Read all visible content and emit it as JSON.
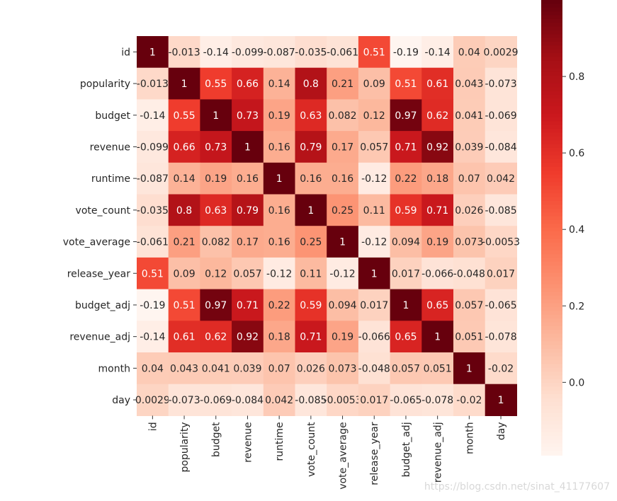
{
  "chart_data": {
    "type": "heatmap",
    "title": "",
    "xlabel": "",
    "ylabel": "",
    "colormap": "Reds",
    "labels": [
      "id",
      "popularity",
      "budget",
      "revenue",
      "runtime",
      "vote_count",
      "vote_average",
      "release_year",
      "budget_adj",
      "revenue_adj",
      "month",
      "day"
    ],
    "matrix": [
      [
        1,
        -0.013,
        -0.14,
        -0.099,
        -0.087,
        -0.035,
        -0.061,
        0.51,
        -0.19,
        -0.14,
        0.04,
        0.0029
      ],
      [
        -0.013,
        1,
        0.55,
        0.66,
        0.14,
        0.8,
        0.21,
        0.09,
        0.51,
        0.61,
        0.043,
        -0.073
      ],
      [
        -0.14,
        0.55,
        1,
        0.73,
        0.19,
        0.63,
        0.082,
        0.12,
        0.97,
        0.62,
        0.041,
        -0.069
      ],
      [
        -0.099,
        0.66,
        0.73,
        1,
        0.16,
        0.79,
        0.17,
        0.057,
        0.71,
        0.92,
        0.039,
        -0.084
      ],
      [
        -0.087,
        0.14,
        0.19,
        0.16,
        1,
        0.16,
        0.16,
        -0.12,
        0.22,
        0.18,
        0.07,
        0.042
      ],
      [
        -0.035,
        0.8,
        0.63,
        0.79,
        0.16,
        1,
        0.25,
        0.11,
        0.59,
        0.71,
        0.026,
        -0.085
      ],
      [
        -0.061,
        0.21,
        0.082,
        0.17,
        0.16,
        0.25,
        1,
        -0.12,
        0.094,
        0.19,
        0.073,
        -0.0053
      ],
      [
        0.51,
        0.09,
        0.12,
        0.057,
        -0.12,
        0.11,
        -0.12,
        1,
        0.017,
        -0.066,
        -0.048,
        0.017
      ],
      [
        -0.19,
        0.51,
        0.97,
        0.71,
        0.22,
        0.59,
        0.094,
        0.017,
        1,
        0.65,
        0.057,
        -0.065
      ],
      [
        -0.14,
        0.61,
        0.62,
        0.92,
        0.18,
        0.71,
        0.19,
        -0.066,
        0.65,
        1,
        0.051,
        -0.078
      ],
      [
        0.04,
        0.043,
        0.041,
        0.039,
        0.07,
        0.026,
        0.073,
        -0.048,
        0.057,
        0.051,
        1,
        -0.02
      ],
      [
        0.0029,
        -0.073,
        -0.069,
        -0.084,
        0.042,
        -0.085,
        -0.0053,
        0.017,
        -0.065,
        -0.078,
        -0.02,
        1
      ]
    ],
    "vmin": -0.19,
    "vmax": 1,
    "colorbar_ticks": [
      0.0,
      0.2,
      0.4,
      0.6,
      0.8
    ],
    "colorbar_tick_labels": [
      "0.0",
      "0.2",
      "0.4",
      "0.6",
      "0.8"
    ]
  },
  "watermark": "https://blog.csdn.net/sinat_41177607"
}
